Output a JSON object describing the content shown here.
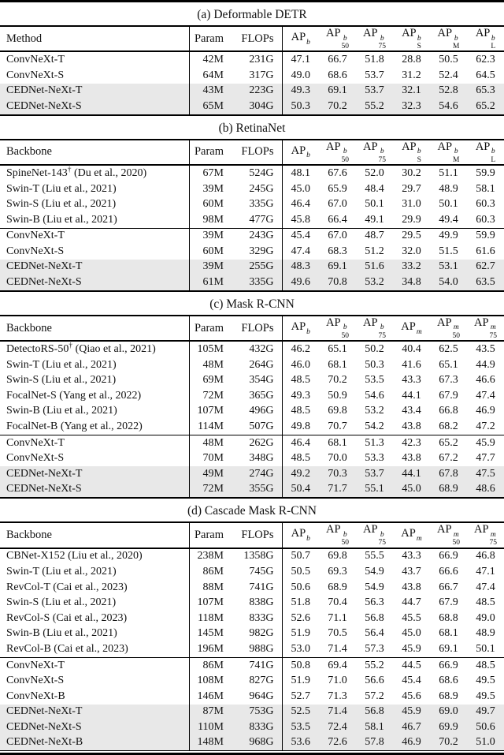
{
  "figure": {
    "colors": {
      "highlight_row": "#e8e8e8",
      "rule": "#000000",
      "text": "#111111"
    },
    "tables": [
      {
        "caption": "(a) Deformable DETR",
        "first_col": "Method",
        "param_header": "Param",
        "flops_header": "FLOPs",
        "ap_cols": [
          {
            "base": "AP",
            "sup": "b",
            "sub": ""
          },
          {
            "base": "AP",
            "sup": "b",
            "sub": "50"
          },
          {
            "base": "AP",
            "sup": "b",
            "sub": "75"
          },
          {
            "base": "AP",
            "sup": "b",
            "sub": "S"
          },
          {
            "base": "AP",
            "sup": "b",
            "sub": "M"
          },
          {
            "base": "AP",
            "sup": "b",
            "sub": "L"
          }
        ],
        "groups": [
          [
            {
              "name": "ConvNeXt-T",
              "dagger": "",
              "cite": "",
              "param": "42M",
              "flops": "231G",
              "vals": [
                "47.1",
                "66.7",
                "51.8",
                "28.8",
                "50.5",
                "62.3"
              ],
              "hl": false
            },
            {
              "name": "ConvNeXt-S",
              "dagger": "",
              "cite": "",
              "param": "64M",
              "flops": "317G",
              "vals": [
                "49.0",
                "68.6",
                "53.7",
                "31.2",
                "52.4",
                "64.5"
              ],
              "hl": false
            },
            {
              "name": "CEDNet-NeXt-T",
              "dagger": "",
              "cite": "",
              "param": "43M",
              "flops": "223G",
              "vals": [
                "49.3",
                "69.1",
                "53.7",
                "32.1",
                "52.8",
                "65.3"
              ],
              "hl": true
            },
            {
              "name": "CEDNet-NeXt-S",
              "dagger": "",
              "cite": "",
              "param": "65M",
              "flops": "304G",
              "vals": [
                "50.3",
                "70.2",
                "55.2",
                "32.3",
                "54.6",
                "65.2"
              ],
              "hl": true
            }
          ]
        ]
      },
      {
        "caption": "(b) RetinaNet",
        "first_col": "Backbone",
        "param_header": "Param",
        "flops_header": "FLOPs",
        "ap_cols": [
          {
            "base": "AP",
            "sup": "b",
            "sub": ""
          },
          {
            "base": "AP",
            "sup": "b",
            "sub": "50"
          },
          {
            "base": "AP",
            "sup": "b",
            "sub": "75"
          },
          {
            "base": "AP",
            "sup": "b",
            "sub": "S"
          },
          {
            "base": "AP",
            "sup": "b",
            "sub": "M"
          },
          {
            "base": "AP",
            "sup": "b",
            "sub": "L"
          }
        ],
        "groups": [
          [
            {
              "name": "SpineNet-143",
              "dagger": "†",
              "cite": "(Du et al., 2020)",
              "param": "67M",
              "flops": "524G",
              "vals": [
                "48.1",
                "67.6",
                "52.0",
                "30.2",
                "51.1",
                "59.9"
              ],
              "hl": false
            },
            {
              "name": "Swin-T",
              "dagger": "",
              "cite": "(Liu et al., 2021)",
              "param": "39M",
              "flops": "245G",
              "vals": [
                "45.0",
                "65.9",
                "48.4",
                "29.7",
                "48.9",
                "58.1"
              ],
              "hl": false
            },
            {
              "name": "Swin-S",
              "dagger": "",
              "cite": "(Liu et al., 2021)",
              "param": "60M",
              "flops": "335G",
              "vals": [
                "46.4",
                "67.0",
                "50.1",
                "31.0",
                "50.1",
                "60.3"
              ],
              "hl": false
            },
            {
              "name": "Swin-B",
              "dagger": "",
              "cite": "(Liu et al., 2021)",
              "param": "98M",
              "flops": "477G",
              "vals": [
                "45.8",
                "66.4",
                "49.1",
                "29.9",
                "49.4",
                "60.3"
              ],
              "hl": false
            }
          ],
          [
            {
              "name": "ConvNeXt-T",
              "dagger": "",
              "cite": "",
              "param": "39M",
              "flops": "243G",
              "vals": [
                "45.4",
                "67.0",
                "48.7",
                "29.5",
                "49.9",
                "59.9"
              ],
              "hl": false
            },
            {
              "name": "ConvNeXt-S",
              "dagger": "",
              "cite": "",
              "param": "60M",
              "flops": "329G",
              "vals": [
                "47.4",
                "68.3",
                "51.2",
                "32.0",
                "51.5",
                "61.6"
              ],
              "hl": false
            },
            {
              "name": "CEDNet-NeXt-T",
              "dagger": "",
              "cite": "",
              "param": "39M",
              "flops": "255G",
              "vals": [
                "48.3",
                "69.1",
                "51.6",
                "33.2",
                "53.1",
                "62.7"
              ],
              "hl": true
            },
            {
              "name": "CEDNet-NeXt-S",
              "dagger": "",
              "cite": "",
              "param": "61M",
              "flops": "335G",
              "vals": [
                "49.6",
                "70.8",
                "53.2",
                "34.8",
                "54.0",
                "63.5"
              ],
              "hl": true
            }
          ]
        ]
      },
      {
        "caption": "(c) Mask R-CNN",
        "first_col": "Backbone",
        "param_header": "Param",
        "flops_header": "FLOPs",
        "ap_cols": [
          {
            "base": "AP",
            "sup": "b",
            "sub": ""
          },
          {
            "base": "AP",
            "sup": "b",
            "sub": "50"
          },
          {
            "base": "AP",
            "sup": "b",
            "sub": "75"
          },
          {
            "base": "AP",
            "sup": "m",
            "sub": ""
          },
          {
            "base": "AP",
            "sup": "m",
            "sub": "50"
          },
          {
            "base": "AP",
            "sup": "m",
            "sub": "75"
          }
        ],
        "groups": [
          [
            {
              "name": "DetectoRS-50",
              "dagger": "†",
              "cite": "(Qiao et al., 2021)",
              "param": "105M",
              "flops": "432G",
              "vals": [
                "46.2",
                "65.1",
                "50.2",
                "40.4",
                "62.5",
                "43.5"
              ],
              "hl": false
            },
            {
              "name": "Swin-T",
              "dagger": "",
              "cite": "(Liu et al., 2021)",
              "param": "48M",
              "flops": "264G",
              "vals": [
                "46.0",
                "68.1",
                "50.3",
                "41.6",
                "65.1",
                "44.9"
              ],
              "hl": false
            },
            {
              "name": "Swin-S",
              "dagger": "",
              "cite": "(Liu et al., 2021)",
              "param": "69M",
              "flops": "354G",
              "vals": [
                "48.5",
                "70.2",
                "53.5",
                "43.3",
                "67.3",
                "46.6"
              ],
              "hl": false
            },
            {
              "name": "FocalNet-S",
              "dagger": "",
              "cite": "(Yang et al., 2022)",
              "param": "72M",
              "flops": "365G",
              "vals": [
                "49.3",
                "50.9",
                "54.6",
                "44.1",
                "67.9",
                "47.4"
              ],
              "hl": false
            },
            {
              "name": "Swin-B",
              "dagger": "",
              "cite": "(Liu et al., 2021)",
              "param": "107M",
              "flops": "496G",
              "vals": [
                "48.5",
                "69.8",
                "53.2",
                "43.4",
                "66.8",
                "46.9"
              ],
              "hl": false
            },
            {
              "name": "FocalNet-B",
              "dagger": "",
              "cite": "(Yang et al., 2022)",
              "param": "114M",
              "flops": "507G",
              "vals": [
                "49.8",
                "70.7",
                "54.2",
                "43.8",
                "68.2",
                "47.2"
              ],
              "hl": false
            }
          ],
          [
            {
              "name": "ConvNeXt-T",
              "dagger": "",
              "cite": "",
              "param": "48M",
              "flops": "262G",
              "vals": [
                "46.4",
                "68.1",
                "51.3",
                "42.3",
                "65.2",
                "45.9"
              ],
              "hl": false
            },
            {
              "name": "ConvNeXt-S",
              "dagger": "",
              "cite": "",
              "param": "70M",
              "flops": "348G",
              "vals": [
                "48.5",
                "70.0",
                "53.3",
                "43.8",
                "67.2",
                "47.7"
              ],
              "hl": false
            },
            {
              "name": "CEDNet-NeXt-T",
              "dagger": "",
              "cite": "",
              "param": "49M",
              "flops": "274G",
              "vals": [
                "49.2",
                "70.3",
                "53.7",
                "44.1",
                "67.8",
                "47.5"
              ],
              "hl": true
            },
            {
              "name": "CEDNet-NeXt-S",
              "dagger": "",
              "cite": "",
              "param": "72M",
              "flops": "355G",
              "vals": [
                "50.4",
                "71.7",
                "55.1",
                "45.0",
                "68.9",
                "48.6"
              ],
              "hl": true
            }
          ]
        ]
      },
      {
        "caption": "(d) Cascade Mask R-CNN",
        "first_col": "Backbone",
        "param_header": "Param",
        "flops_header": "FLOPs",
        "ap_cols": [
          {
            "base": "AP",
            "sup": "b",
            "sub": ""
          },
          {
            "base": "AP",
            "sup": "b",
            "sub": "50"
          },
          {
            "base": "AP",
            "sup": "b",
            "sub": "75"
          },
          {
            "base": "AP",
            "sup": "m",
            "sub": ""
          },
          {
            "base": "AP",
            "sup": "m",
            "sub": "50"
          },
          {
            "base": "AP",
            "sup": "m",
            "sub": "75"
          }
        ],
        "groups": [
          [
            {
              "name": "CBNet-X152",
              "dagger": "",
              "cite": "(Liu et al., 2020)",
              "param": "238M",
              "flops": "1358G",
              "vals": [
                "50.7",
                "69.8",
                "55.5",
                "43.3",
                "66.9",
                "46.8"
              ],
              "hl": false
            },
            {
              "name": "Swin-T",
              "dagger": "",
              "cite": "(Liu et al., 2021)",
              "param": "86M",
              "flops": "745G",
              "vals": [
                "50.5",
                "69.3",
                "54.9",
                "43.7",
                "66.6",
                "47.1"
              ],
              "hl": false
            },
            {
              "name": "RevCol-T",
              "dagger": "",
              "cite": "(Cai et al., 2023)",
              "param": "88M",
              "flops": "741G",
              "vals": [
                "50.6",
                "68.9",
                "54.9",
                "43.8",
                "66.7",
                "47.4"
              ],
              "hl": false
            },
            {
              "name": "Swin-S",
              "dagger": "",
              "cite": "(Liu et al., 2021)",
              "param": "107M",
              "flops": "838G",
              "vals": [
                "51.8",
                "70.4",
                "56.3",
                "44.7",
                "67.9",
                "48.5"
              ],
              "hl": false
            },
            {
              "name": "RevCol-S",
              "dagger": "",
              "cite": "(Cai et al., 2023)",
              "param": "118M",
              "flops": "833G",
              "vals": [
                "52.6",
                "71.1",
                "56.8",
                "45.5",
                "68.8",
                "49.0"
              ],
              "hl": false
            },
            {
              "name": "Swin-B",
              "dagger": "",
              "cite": "(Liu et al., 2021)",
              "param": "145M",
              "flops": "982G",
              "vals": [
                "51.9",
                "70.5",
                "56.4",
                "45.0",
                "68.1",
                "48.9"
              ],
              "hl": false
            },
            {
              "name": "RevCol-B",
              "dagger": "",
              "cite": "(Cai et al., 2023)",
              "param": "196M",
              "flops": "988G",
              "vals": [
                "53.0",
                "71.4",
                "57.3",
                "45.9",
                "69.1",
                "50.1"
              ],
              "hl": false
            }
          ],
          [
            {
              "name": "ConvNeXt-T",
              "dagger": "",
              "cite": "",
              "param": "86M",
              "flops": "741G",
              "vals": [
                "50.8",
                "69.4",
                "55.2",
                "44.5",
                "66.9",
                "48.5"
              ],
              "hl": false
            },
            {
              "name": "ConvNeXt-S",
              "dagger": "",
              "cite": "",
              "param": "108M",
              "flops": "827G",
              "vals": [
                "51.9",
                "71.0",
                "56.6",
                "45.4",
                "68.6",
                "49.5"
              ],
              "hl": false
            },
            {
              "name": "ConvNeXt-B",
              "dagger": "",
              "cite": "",
              "param": "146M",
              "flops": "964G",
              "vals": [
                "52.7",
                "71.3",
                "57.2",
                "45.6",
                "68.9",
                "49.5"
              ],
              "hl": false
            },
            {
              "name": "CEDNet-NeXt-T",
              "dagger": "",
              "cite": "",
              "param": "87M",
              "flops": "753G",
              "vals": [
                "52.5",
                "71.4",
                "56.8",
                "45.9",
                "69.0",
                "49.7"
              ],
              "hl": true
            },
            {
              "name": "CEDNet-NeXt-S",
              "dagger": "",
              "cite": "",
              "param": "110M",
              "flops": "833G",
              "vals": [
                "53.5",
                "72.4",
                "58.1",
                "46.7",
                "69.9",
                "50.6"
              ],
              "hl": true
            },
            {
              "name": "CEDNet-NeXt-B",
              "dagger": "",
              "cite": "",
              "param": "148M",
              "flops": "968G",
              "vals": [
                "53.6",
                "72.6",
                "57.8",
                "46.9",
                "70.2",
                "51.0"
              ],
              "hl": true
            }
          ]
        ]
      }
    ]
  }
}
